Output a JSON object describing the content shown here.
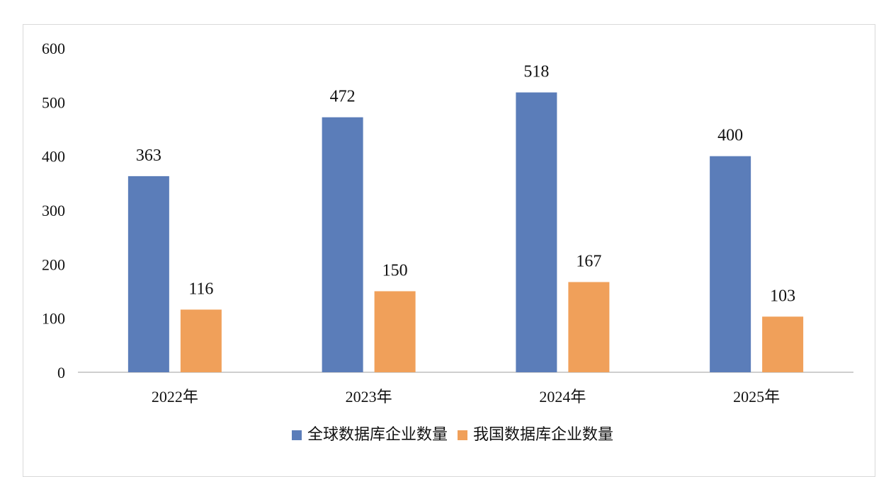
{
  "chart_data": {
    "type": "bar",
    "categories": [
      "2022年",
      "2023年",
      "2024年",
      "2025年"
    ],
    "series": [
      {
        "name": "全球数据库企业数量",
        "color": "#5b7db9",
        "values": [
          363,
          472,
          518,
          400
        ]
      },
      {
        "name": "我国数据库企业数量",
        "color": "#f0a05a",
        "values": [
          116,
          150,
          167,
          103
        ]
      }
    ],
    "ylim": [
      0,
      600
    ],
    "yticks": [
      0,
      100,
      200,
      300,
      400,
      500,
      600
    ],
    "grid": false,
    "legend": "bottom",
    "title": "",
    "xlabel": "",
    "ylabel": ""
  }
}
